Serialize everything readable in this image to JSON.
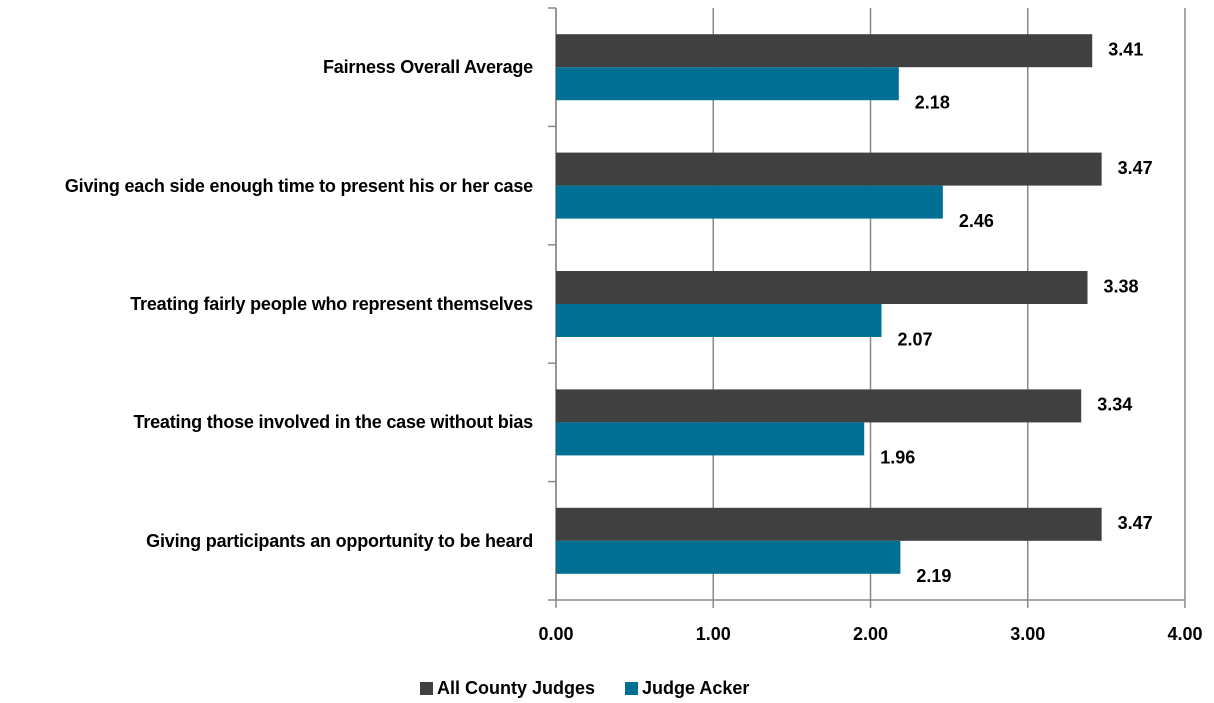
{
  "chart_data": {
    "type": "hbar",
    "categories": [
      "Fairness Overall Average",
      "Giving each side enough time to present his or her case",
      "Treating fairly people who represent themselves",
      "Treating those involved in the case without bias",
      "Giving participants an opportunity to be heard"
    ],
    "series": [
      {
        "name": "All County Judges",
        "color": "#404040",
        "values": [
          3.41,
          3.47,
          3.38,
          3.34,
          3.47
        ]
      },
      {
        "name": "Judge Acker",
        "color": "#006f94",
        "values": [
          2.18,
          2.46,
          2.07,
          1.96,
          2.19
        ]
      }
    ],
    "xlim": [
      0,
      4
    ],
    "xticks": [
      {
        "value": 0,
        "label": "0.00"
      },
      {
        "value": 1,
        "label": "1.00"
      },
      {
        "value": 2,
        "label": "2.00"
      },
      {
        "value": 3,
        "label": "3.00"
      },
      {
        "value": 4,
        "label": "4.00"
      }
    ],
    "grid": true,
    "legend": "bottom"
  }
}
